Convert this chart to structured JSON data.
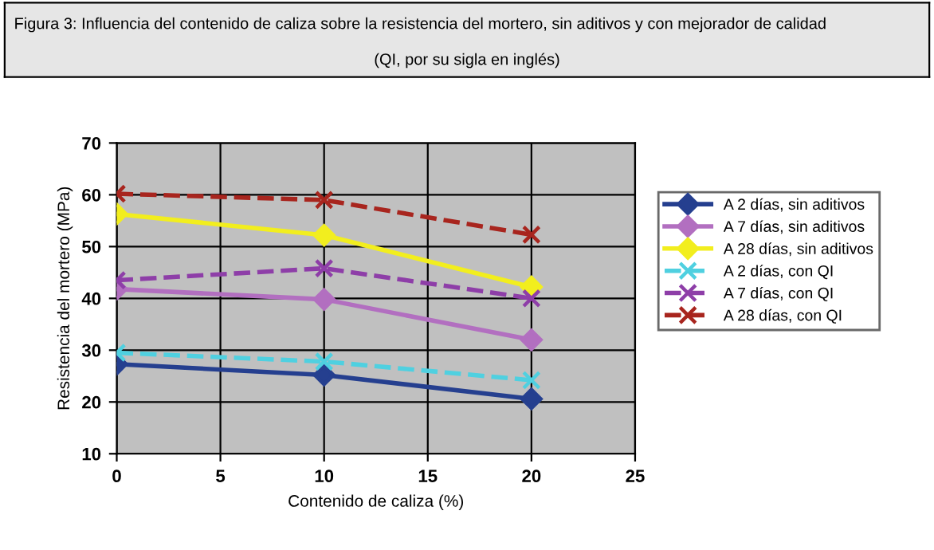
{
  "chart_data": {
    "type": "line",
    "title": "Figura 3: Influencia del contenido de caliza sobre la resistencia del mortero, sin aditivos y con mejorador de calidad",
    "subtitle": "(QI, por su sigla en inglés)",
    "xlabel": "Contenido de caliza (%)",
    "ylabel": "Resistencia del mortero (MPa)",
    "x": [
      0,
      10,
      20
    ],
    "series": [
      {
        "name": "A 2 días, sin aditivos",
        "color": "#253f8f",
        "values": [
          27.3,
          25.2,
          20.6
        ],
        "marker": "diamond",
        "line_style": "solid"
      },
      {
        "name": "A 7 días, sin aditivos",
        "color": "#b26fc0",
        "values": [
          41.8,
          39.8,
          32
        ],
        "marker": "diamond",
        "line_style": "solid"
      },
      {
        "name": "A 28 días, sin aditivos",
        "color": "#f2ee1e",
        "values": [
          56.3,
          52.2,
          42.2
        ],
        "marker": "diamond",
        "line_style": "solid"
      },
      {
        "name": "A 2 días, con QI",
        "color": "#4fd0e0",
        "values": [
          29.5,
          27.8,
          24.2
        ],
        "marker": "cross",
        "line_style": "dashed"
      },
      {
        "name": "A 7 días, con QI",
        "color": "#8e3ea8",
        "values": [
          43.5,
          45.8,
          40
        ],
        "marker": "cross",
        "line_style": "dashed"
      },
      {
        "name": "A 28 días, con QI",
        "color": "#a8251e",
        "values": [
          60.2,
          59,
          52.3
        ],
        "marker": "cross",
        "line_style": "dashed"
      }
    ],
    "xlim": [
      0,
      25
    ],
    "xticks": [
      0,
      5,
      10,
      15,
      20,
      25
    ],
    "ylim": [
      10,
      70
    ],
    "yticks": [
      10,
      20,
      30,
      40,
      50,
      60,
      70
    ],
    "grid": true,
    "legend": "right"
  }
}
